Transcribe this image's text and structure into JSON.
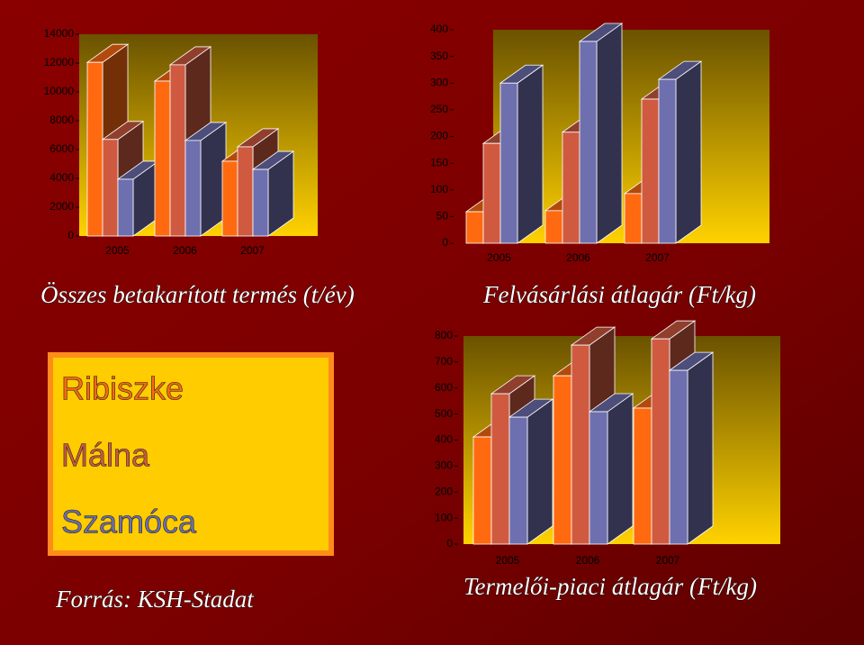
{
  "chart_data": [
    {
      "type": "bar3d",
      "title": "Összes betakarított termés (t/év)",
      "categories": [
        "2005",
        "2006",
        "2007"
      ],
      "series": [
        {
          "name": "Ribiszke",
          "color": "#ff6a10",
          "values": [
            12050,
            10750,
            5190
          ]
        },
        {
          "name": "Málna",
          "color": "#cf5a40",
          "values": [
            6700,
            11880,
            6190
          ]
        },
        {
          "name": "Szamóca",
          "color": "#6e6fae",
          "values": [
            3940,
            6630,
            4620
          ]
        }
      ],
      "ylim": [
        0,
        14000
      ],
      "yticks": [
        0,
        2000,
        4000,
        6000,
        8000,
        10000,
        12000,
        14000
      ]
    },
    {
      "type": "bar3d",
      "title": "Felvásárlási átlagár (Ft/kg)",
      "categories": [
        "2005",
        "2006",
        "2007"
      ],
      "series": [
        {
          "color": "#ff6a10",
          "values": [
            59,
            61,
            93
          ]
        },
        {
          "color": "#cf5a40",
          "values": [
            187,
            208,
            270
          ]
        },
        {
          "color": "#6e6fae",
          "values": [
            300,
            378,
            307
          ]
        }
      ],
      "ylim": [
        0,
        400
      ],
      "yticks": [
        0,
        50,
        100,
        150,
        200,
        250,
        300,
        350,
        400
      ]
    },
    {
      "type": "bar3d",
      "title": "Termelői-piaci átlagár (Ft/kg)",
      "categories": [
        "2005",
        "2006",
        "2007"
      ],
      "series": [
        {
          "color": "#ff6a10",
          "values": [
            412,
            647,
            523
          ]
        },
        {
          "color": "#cf5a40",
          "values": [
            578,
            765,
            789
          ]
        },
        {
          "color": "#6e6fae",
          "values": [
            488,
            509,
            668
          ]
        }
      ],
      "ylim": [
        0,
        800
      ],
      "yticks": [
        0,
        100,
        200,
        300,
        400,
        500,
        600,
        700,
        800
      ]
    }
  ],
  "source": "Forrás: KSH-Stadat"
}
